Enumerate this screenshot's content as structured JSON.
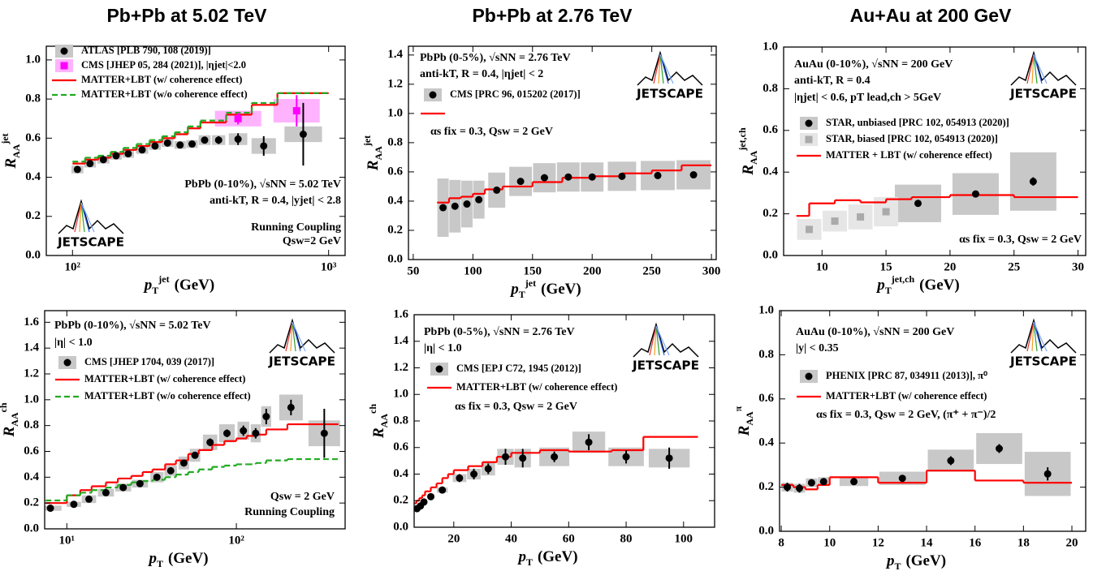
{
  "column_titles": [
    "Pb+Pb at 5.02 TeV",
    "Pb+Pb at 2.76 TeV",
    "Au+Au at 200 GeV"
  ],
  "logo_text": "JETSCAPE",
  "chart_data": [
    {
      "type": "scatter",
      "xscale": "log",
      "xlabel": {
        "main": "p",
        "sub": "T",
        "sup": "jet",
        "unit": "(GeV)"
      },
      "ylabel": {
        "main": "R",
        "sub": "AA",
        "sup": "jet"
      },
      "xlim": [
        79,
        1160
      ],
      "ylim": [
        0,
        1.07
      ],
      "xticks": [
        {
          "value": 100,
          "label": "10²"
        },
        {
          "value": 1000,
          "label": "10³"
        }
      ],
      "yticks": [
        {
          "value": 0,
          "label": "0.0"
        },
        0.2,
        0.4,
        0.6,
        0.8,
        {
          "value": 1,
          "label": "1.0"
        }
      ],
      "series": [
        {
          "name": "ATLAS [PLB 790, 108 (2019)]",
          "color": "#000000",
          "sys_color": "#c8c8c8",
          "marker": "circle",
          "x": [
            104.5,
            117,
            132,
            148,
            165,
            187,
            210,
            235,
            263,
            293,
            328,
            372,
            443,
            558,
            796
          ],
          "values": [
            0.44,
            0.47,
            0.49,
            0.51,
            0.52,
            0.54,
            0.56,
            0.575,
            0.565,
            0.57,
            0.59,
            0.59,
            0.595,
            0.56,
            0.62
          ],
          "errors": [
            0.01,
            0.01,
            0.01,
            0.01,
            0.01,
            0.01,
            0.01,
            0.01,
            0.01,
            0.01,
            0.015,
            0.02,
            0.03,
            0.05,
            0.16
          ],
          "sys_errors": [
            0.02,
            0.02,
            0.02,
            0.02,
            0.02,
            0.02,
            0.02,
            0.02,
            0.02,
            0.02,
            0.025,
            0.025,
            0.03,
            0.04,
            0.04
          ]
        },
        {
          "name": "CMS [JHEP 05, 284 (2021)], |ηjet|<2.0",
          "color": "#ff00ff",
          "sys_color": "#ffb3ff",
          "marker": "square",
          "x": [
            443,
            750
          ],
          "values": [
            0.7,
            0.74
          ],
          "errors": [
            0.03,
            0.08
          ],
          "sys_errors": [
            0.04,
            0.06
          ]
        },
        {
          "name": "MATTER+LBT (w/ coherence effect)",
          "color": "#ff0000",
          "bins": [
            100,
            112,
            126,
            141,
            158,
            178,
            200,
            224,
            251,
            282,
            316,
            398,
            501,
            631,
            1000
          ],
          "values": [
            0.47,
            0.49,
            0.5,
            0.52,
            0.54,
            0.56,
            0.58,
            0.6,
            0.62,
            0.65,
            0.68,
            0.72,
            0.77,
            0.83
          ]
        },
        {
          "name": "MATTER+LBT (w/o coherence effect)",
          "color": "#22aa22",
          "dash": true,
          "bins": [
            100,
            112,
            126,
            141,
            158,
            178,
            200,
            224,
            251,
            282,
            316,
            398,
            501,
            631,
            1000
          ],
          "values": [
            0.48,
            0.5,
            0.51,
            0.53,
            0.55,
            0.57,
            0.59,
            0.61,
            0.63,
            0.66,
            0.69,
            0.73,
            0.78,
            0.83
          ]
        }
      ],
      "annotations": [
        "PbPb (0-10%), √sNN = 5.02 TeV",
        "anti-kT, R = 0.4, |yjet| < 2.8",
        "Running Coupling",
        "Qsw=2 GeV"
      ]
    },
    {
      "type": "scatter",
      "xlabel": {
        "main": "p",
        "sub": "T",
        "sup": "jet",
        "unit": "(GeV)"
      },
      "ylabel": {
        "main": "R",
        "sub": "AA",
        "sup": "jet"
      },
      "xlim": [
        46,
        304
      ],
      "ylim": [
        0,
        1.46
      ],
      "xticks": [
        50,
        100,
        150,
        200,
        250,
        300
      ],
      "yticks": [
        {
          "value": 0,
          "label": "0.0"
        },
        0.2,
        0.4,
        0.6,
        0.8,
        {
          "value": 1,
          "label": "1.0"
        },
        1.2,
        1.4
      ],
      "series": [
        {
          "name": "CMS [PRC 96, 015202 (2017)]",
          "color": "#000000",
          "sys_color": "#c8c8c8",
          "marker": "circle",
          "x": [
            75,
            85,
            95,
            105,
            120,
            140,
            160,
            180,
            200,
            225,
            255,
            285
          ],
          "values": [
            0.355,
            0.365,
            0.38,
            0.41,
            0.475,
            0.535,
            0.56,
            0.565,
            0.565,
            0.57,
            0.575,
            0.58
          ],
          "errors": [
            0.01,
            0.01,
            0.01,
            0.01,
            0.01,
            0.01,
            0.01,
            0.01,
            0.01,
            0.01,
            0.01,
            0.01
          ],
          "sys_errors": [
            0.2,
            0.18,
            0.16,
            0.13,
            0.12,
            0.1,
            0.1,
            0.1,
            0.1,
            0.1,
            0.1,
            0.1
          ]
        },
        {
          "color": "#ff0000",
          "bins": [
            70,
            80,
            90,
            100,
            110,
            125,
            150,
            175,
            200,
            225,
            250,
            275,
            300
          ],
          "values": [
            0.39,
            0.42,
            0.43,
            0.45,
            0.48,
            0.5,
            0.53,
            0.56,
            0.57,
            0.59,
            0.61,
            0.645
          ]
        }
      ],
      "annotations": [
        "PbPb (0-5%), √sNN = 2.76 TeV",
        "anti-kT, R = 0.4, |ηjet| < 2",
        "αs fix = 0.3, Qsw = 2 GeV"
      ]
    },
    {
      "type": "scatter",
      "xlabel": {
        "main": "p",
        "sub": "T",
        "sup": "jet,ch",
        "unit": "(GeV)"
      },
      "ylabel": {
        "main": "R",
        "sub": "AA",
        "sup": "jet,ch"
      },
      "xlim": [
        7,
        30.6
      ],
      "ylim": [
        0,
        1
      ],
      "xticks": [
        10,
        15,
        20,
        25,
        30
      ],
      "yticks": [
        {
          "value": 0,
          "label": "0.0"
        },
        0.2,
        0.4,
        0.6,
        0.8,
        {
          "value": 1,
          "label": "1.0"
        }
      ],
      "series": [
        {
          "name": "STAR, unbiased [PRC 102, 054913 (2020)]",
          "color": "#000000",
          "sys_color": "#c8c8c8",
          "marker": "circle",
          "x": [
            17.5,
            22,
            26.5
          ],
          "values": [
            0.25,
            0.295,
            0.355
          ],
          "errors": [
            0.015,
            0.015,
            0.02
          ],
          "sys_errors": [
            0.09,
            0.1,
            0.14
          ]
        },
        {
          "name": "STAR, biased [PRC 102, 054913 (2020)]",
          "color": "#aaaaaa",
          "sys_color": "#e6e6e6",
          "marker": "square",
          "x": [
            9,
            11,
            13,
            15
          ],
          "values": [
            0.125,
            0.165,
            0.185,
            0.21
          ],
          "sys_errors": [
            0.05,
            0.05,
            0.06,
            0.07
          ]
        },
        {
          "name": "MATTER + LBT (w/ coherence effect)",
          "color": "#ff0000",
          "bins": [
            8,
            9,
            11,
            13,
            15,
            17,
            20,
            25,
            30
          ],
          "values": [
            0.19,
            0.25,
            0.265,
            0.255,
            0.27,
            0.28,
            0.29,
            0.28
          ]
        }
      ],
      "annotations": [
        "AuAu (0-10%), √sNN = 200 GeV",
        "anti-kT, R = 0.4",
        "|ηjet| < 0.6, pT lead,ch > 5GeV",
        "αs fix = 0.3, Qsw = 2 GeV"
      ]
    },
    {
      "type": "scatter",
      "xscale": "log",
      "xlabel": {
        "main": "p",
        "sub": "T",
        "unit": "(GeV)"
      },
      "ylabel": {
        "main": "R",
        "sub": "AA",
        "sup": "ch"
      },
      "xlim": [
        7.4,
        438
      ],
      "ylim": [
        0,
        1.69
      ],
      "xticks": [
        {
          "value": 10,
          "label": "10¹"
        },
        {
          "value": 100,
          "label": "10²"
        }
      ],
      "yticks": [
        {
          "value": 0,
          "label": "0.0"
        },
        0.2,
        0.4,
        0.6,
        0.8,
        {
          "value": 1,
          "label": "1.0"
        },
        1.2,
        1.4,
        1.6
      ],
      "series": [
        {
          "name": "CMS [JHEP 1704, 039 (2017)]",
          "color": "#000000",
          "sys_color": "#c8c8c8",
          "marker": "circle",
          "x": [
            8,
            11,
            13.5,
            17,
            21.5,
            27,
            34,
            41,
            49,
            57,
            70,
            88,
            110,
            130,
            150,
            210,
            330
          ],
          "values": [
            0.16,
            0.19,
            0.23,
            0.28,
            0.32,
            0.35,
            0.4,
            0.45,
            0.51,
            0.57,
            0.67,
            0.74,
            0.76,
            0.74,
            0.87,
            0.94,
            0.74
          ],
          "errors": [
            0.01,
            0.01,
            0.01,
            0.01,
            0.01,
            0.01,
            0.01,
            0.02,
            0.02,
            0.02,
            0.03,
            0.03,
            0.04,
            0.04,
            0.06,
            0.06,
            0.19
          ],
          "sys_errors": [
            0.02,
            0.02,
            0.03,
            0.03,
            0.03,
            0.03,
            0.04,
            0.04,
            0.05,
            0.05,
            0.06,
            0.07,
            0.07,
            0.07,
            0.08,
            0.1,
            0.1
          ]
        },
        {
          "name": "MATTER+LBT (w/ coherence effect)",
          "color": "#ff0000",
          "bins": [
            7.5,
            10,
            12,
            14,
            17,
            20,
            24,
            28,
            32,
            38,
            44,
            52,
            60,
            72,
            85,
            100,
            115,
            130,
            150,
            200,
            400
          ],
          "values": [
            0.2,
            0.26,
            0.3,
            0.33,
            0.36,
            0.39,
            0.41,
            0.44,
            0.46,
            0.5,
            0.53,
            0.58,
            0.61,
            0.65,
            0.68,
            0.7,
            0.72,
            0.73,
            0.77,
            0.81
          ]
        },
        {
          "name": "MATTER+LBT (w/o coherence effect)",
          "color": "#22aa22",
          "dash": true,
          "bins": [
            7.5,
            10,
            12,
            14,
            17,
            20,
            24,
            28,
            32,
            38,
            44,
            52,
            60,
            72,
            85,
            100,
            115,
            130,
            150,
            200,
            400
          ],
          "values": [
            0.22,
            0.26,
            0.28,
            0.3,
            0.32,
            0.34,
            0.36,
            0.37,
            0.38,
            0.4,
            0.42,
            0.44,
            0.46,
            0.48,
            0.49,
            0.5,
            0.5,
            0.51,
            0.53,
            0.54
          ]
        }
      ],
      "annotations": [
        "PbPb (0-10%), √sNN = 5.02 TeV",
        "|η| < 1.0",
        "Qsw = 2 GeV",
        "Running Coupling"
      ]
    },
    {
      "type": "scatter",
      "xlabel": {
        "main": "p",
        "sub": "T",
        "unit": "(GeV)"
      },
      "ylabel": {
        "main": "R",
        "sub": "AA",
        "sup": "ch"
      },
      "xlim": [
        6.2,
        110.8
      ],
      "ylim": [
        0,
        1.6
      ],
      "xticks": [
        20,
        40,
        60,
        80,
        100
      ],
      "yticks": [
        {
          "value": 0,
          "label": "0.0"
        },
        0.2,
        0.4,
        0.6,
        0.8,
        {
          "value": 1,
          "label": "1.0"
        },
        1.2,
        1.4,
        1.6
      ],
      "series": [
        {
          "name": "CMS [EPJ C72, 1945 (2012)]",
          "color": "#000000",
          "sys_color": "#c8c8c8",
          "marker": "circle",
          "x": [
            7.2,
            8.4,
            9.6,
            12,
            16,
            22,
            27,
            32,
            38,
            44,
            55,
            67,
            80,
            95
          ],
          "values": [
            0.14,
            0.16,
            0.19,
            0.23,
            0.28,
            0.37,
            0.4,
            0.44,
            0.53,
            0.52,
            0.53,
            0.64,
            0.53,
            0.52
          ],
          "errors": [
            0.01,
            0.01,
            0.01,
            0.01,
            0.02,
            0.03,
            0.04,
            0.04,
            0.06,
            0.07,
            0.04,
            0.06,
            0.05,
            0.08
          ],
          "sys_errors": [
            0.02,
            0.02,
            0.02,
            0.02,
            0.02,
            0.03,
            0.04,
            0.05,
            0.06,
            0.07,
            0.07,
            0.08,
            0.07,
            0.07
          ]
        },
        {
          "name": "MATTER+LBT (w/ coherence effect)",
          "color": "#ff0000",
          "bins": [
            6,
            7,
            8,
            9,
            10,
            12,
            14,
            16,
            18,
            20,
            25,
            30,
            35,
            40,
            50,
            60,
            75,
            86,
            105
          ],
          "values": [
            0.18,
            0.2,
            0.22,
            0.24,
            0.27,
            0.3,
            0.33,
            0.37,
            0.4,
            0.43,
            0.46,
            0.49,
            0.53,
            0.56,
            0.58,
            0.57,
            0.58,
            0.68
          ]
        }
      ],
      "annotations": [
        "PbPb (0-5%), √sNN = 2.76 TeV",
        "|η| < 1.0",
        "αs fix = 0.3, Qsw = 2 GeV"
      ]
    },
    {
      "type": "scatter",
      "xlabel": {
        "main": "p",
        "sub": "T",
        "unit": "(GeV)"
      },
      "ylabel": {
        "main": "R",
        "sub": "AA",
        "sup": "π"
      },
      "xlim": [
        7.93,
        20.57
      ],
      "ylim": [
        0,
        1
      ],
      "xticks": [
        8,
        10,
        12,
        14,
        16,
        18,
        20
      ],
      "yticks": [
        {
          "value": 0,
          "label": "0.0"
        },
        0.2,
        0.4,
        0.6,
        0.8,
        {
          "value": 1,
          "label": "1.0"
        }
      ],
      "series": [
        {
          "name": "PHENIX [PRC 87, 034911 (2013)], π⁰",
          "color": "#000000",
          "sys_color": "#c8c8c8",
          "marker": "circle",
          "x": [
            8.25,
            8.75,
            9.25,
            9.75,
            11,
            13,
            15,
            17,
            19
          ],
          "values": [
            0.2,
            0.195,
            0.22,
            0.225,
            0.225,
            0.24,
            0.32,
            0.375,
            0.26
          ],
          "errors": [
            0.02,
            0.02,
            0.015,
            0.015,
            0.015,
            0.015,
            0.02,
            0.02,
            0.03
          ],
          "sys_errors": [
            0.02,
            0.02,
            0.02,
            0.02,
            0.02,
            0.03,
            0.05,
            0.07,
            0.1
          ]
        },
        {
          "name": "MATTER+LBT (w/ coherence effect)",
          "color": "#ff0000",
          "bins": [
            8,
            8.5,
            9,
            9.5,
            10,
            12,
            14,
            16,
            18,
            20
          ],
          "values": [
            0.21,
            0.2,
            0.19,
            0.21,
            0.245,
            0.22,
            0.275,
            0.23,
            0.22
          ]
        }
      ],
      "annotations": [
        "AuAu (0-10%), √sNN = 200 GeV",
        "|y| < 0.35",
        "αs fix = 0.3, Qsw = 2 GeV, (π⁺ + π⁻)/2"
      ]
    }
  ]
}
